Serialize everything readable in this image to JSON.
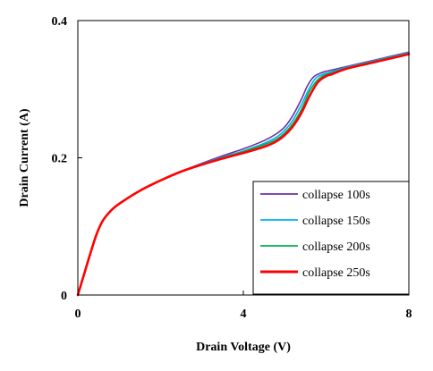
{
  "chart_data": {
    "type": "line",
    "title": "",
    "xlabel": "Drain Voltage (V)",
    "ylabel": "Drain Current (A)",
    "xlim": [
      0,
      8
    ],
    "ylim": [
      0,
      0.4
    ],
    "x_ticks": [
      0,
      4,
      8
    ],
    "x_tick_labels": [
      "0",
      "4",
      "8"
    ],
    "y_ticks": [
      0,
      0.2,
      0.4
    ],
    "y_tick_labels": [
      "0",
      "0.2",
      "0.4"
    ],
    "grid": false,
    "legend": "bottom-right",
    "series": [
      {
        "name": "collapse 100s",
        "color": "#7030A0",
        "x": [
          0,
          0.15,
          0.3,
          0.45,
          0.6,
          0.8,
          1.0,
          1.5,
          2.0,
          2.5,
          3.0,
          3.5,
          4.0,
          4.5,
          4.8,
          5.0,
          5.2,
          5.4,
          5.55,
          5.7,
          5.85,
          6.0,
          6.5,
          7.0,
          7.5,
          8.0
        ],
        "y": [
          0,
          0.03,
          0.06,
          0.088,
          0.108,
          0.123,
          0.133,
          0.152,
          0.167,
          0.18,
          0.192,
          0.203,
          0.213,
          0.225,
          0.235,
          0.245,
          0.262,
          0.285,
          0.305,
          0.318,
          0.323,
          0.326,
          0.333,
          0.34,
          0.347,
          0.354
        ]
      },
      {
        "name": "collapse 150s",
        "color": "#00B0F0",
        "x": [
          0,
          0.15,
          0.3,
          0.45,
          0.6,
          0.8,
          1.0,
          1.5,
          2.0,
          2.5,
          3.0,
          3.5,
          4.0,
          4.5,
          4.8,
          5.0,
          5.2,
          5.4,
          5.6,
          5.75,
          5.9,
          6.05,
          6.5,
          7.0,
          7.5,
          8.0
        ],
        "y": [
          0,
          0.03,
          0.06,
          0.088,
          0.108,
          0.123,
          0.133,
          0.152,
          0.167,
          0.18,
          0.191,
          0.201,
          0.21,
          0.221,
          0.23,
          0.24,
          0.255,
          0.277,
          0.302,
          0.316,
          0.321,
          0.324,
          0.332,
          0.339,
          0.346,
          0.353
        ]
      },
      {
        "name": "collapse 200s",
        "color": "#00B050",
        "x": [
          0,
          0.15,
          0.3,
          0.45,
          0.6,
          0.8,
          1.0,
          1.5,
          2.0,
          2.5,
          3.0,
          3.5,
          4.0,
          4.5,
          4.8,
          5.0,
          5.2,
          5.4,
          5.6,
          5.8,
          5.95,
          6.1,
          6.5,
          7.0,
          7.5,
          8.0
        ],
        "y": [
          0,
          0.03,
          0.06,
          0.088,
          0.108,
          0.123,
          0.133,
          0.152,
          0.167,
          0.18,
          0.19,
          0.2,
          0.209,
          0.219,
          0.227,
          0.236,
          0.25,
          0.27,
          0.297,
          0.314,
          0.32,
          0.323,
          0.331,
          0.338,
          0.345,
          0.352
        ]
      },
      {
        "name": "collapse 250s",
        "color": "#FF0000",
        "x": [
          0,
          0.15,
          0.3,
          0.45,
          0.6,
          0.8,
          1.0,
          1.5,
          2.0,
          2.5,
          3.0,
          3.5,
          4.0,
          4.5,
          4.8,
          5.0,
          5.2,
          5.4,
          5.6,
          5.8,
          6.0,
          6.15,
          6.5,
          7.0,
          7.5,
          8.0
        ],
        "y": [
          0,
          0.03,
          0.06,
          0.088,
          0.108,
          0.123,
          0.133,
          0.152,
          0.167,
          0.18,
          0.19,
          0.199,
          0.207,
          0.216,
          0.224,
          0.233,
          0.246,
          0.265,
          0.29,
          0.31,
          0.319,
          0.322,
          0.33,
          0.337,
          0.344,
          0.351
        ]
      }
    ]
  }
}
